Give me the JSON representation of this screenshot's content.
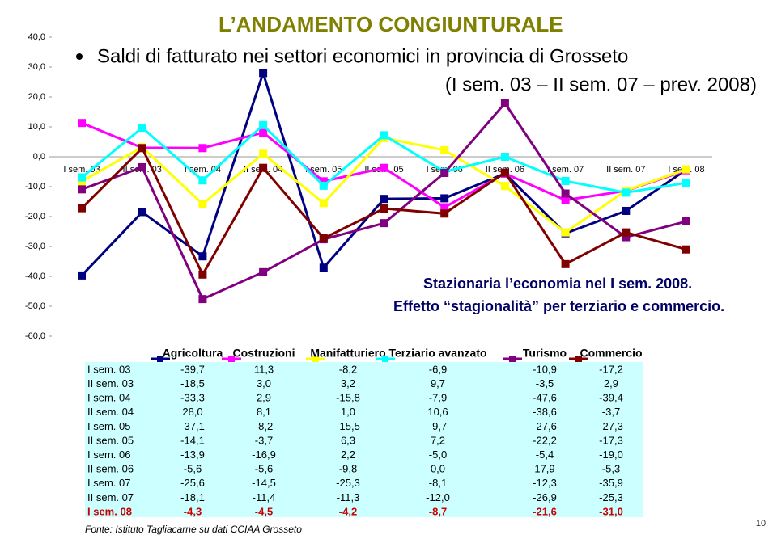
{
  "chart_data": {
    "type": "line",
    "title": "L’ANDAMENTO CONGIUNTURALE",
    "subtitle": "Saldi di fatturato nei settori economici in provincia di Grosseto",
    "period": "(I sem. 03 – II sem. 07 – prev. 2008)",
    "annotations": [
      "Stazionaria l’economia nel I sem. 2008.",
      "Effetto “stagionalità” per terziario e commercio."
    ],
    "source": "Fonte: Istituto Tagliacarne su dati CCIAA Grosseto",
    "categories": [
      "I sem. 03",
      "II sem. 03",
      "I sem. 04",
      "II sem. 04",
      "I sem. 05",
      "II sem. 05",
      "I sem. 06",
      "II sem. 06",
      "I sem. 07",
      "II sem. 07",
      "I sem. 08"
    ],
    "ylim": [
      -60,
      40
    ],
    "yticks": [
      {
        "value": 40,
        "label": "40,0"
      },
      {
        "value": 30,
        "label": "30,0"
      },
      {
        "value": 20,
        "label": "20,0"
      },
      {
        "value": 10,
        "label": "10,0"
      },
      {
        "value": 0,
        "label": "0,0"
      },
      {
        "value": -10,
        "label": "-10,0"
      },
      {
        "value": -20,
        "label": "-20,0"
      },
      {
        "value": -30,
        "label": "-30,0"
      },
      {
        "value": -40,
        "label": "-40,0"
      },
      {
        "value": -50,
        "label": "-50,0"
      },
      {
        "value": -60,
        "label": "-60,0"
      }
    ],
    "series": [
      {
        "name": "Agricoltura",
        "color": "#000080",
        "values": [
          -39.7,
          -18.5,
          -33.3,
          28.0,
          -37.1,
          -14.1,
          -13.9,
          -5.6,
          -25.6,
          -18.1,
          -4.3
        ],
        "value_labels": [
          "-39,7",
          "-18,5",
          "-33,3",
          "28,0",
          "-37,1",
          "-14,1",
          "-13,9",
          "-5,6",
          "-25,6",
          "-18,1",
          "-4,3"
        ]
      },
      {
        "name": "Costruzioni",
        "color": "#ff00ff",
        "values": [
          11.3,
          3.0,
          2.9,
          8.1,
          -8.2,
          -3.7,
          -16.9,
          -5.6,
          -14.5,
          -11.4,
          -4.5
        ],
        "value_labels": [
          "11,3",
          "3,0",
          "2,9",
          "8,1",
          "-8,2",
          "-3,7",
          "-16,9",
          "-5,6",
          "-14,5",
          "-11,4",
          "-4,5"
        ]
      },
      {
        "name": "Manifatturiero",
        "color": "#ffff00",
        "values": [
          -8.2,
          3.2,
          -15.8,
          1.0,
          -15.5,
          6.3,
          2.2,
          -9.8,
          -25.3,
          -11.3,
          -4.2
        ],
        "value_labels": [
          "-8,2",
          "3,2",
          "-15,8",
          "1,0",
          "-15,5",
          "6,3",
          "2,2",
          "-9,8",
          "-25,3",
          "-11,3",
          "-4,2"
        ]
      },
      {
        "name": "Terziario avanzato",
        "color": "#00ffff",
        "values": [
          -6.9,
          9.7,
          -7.9,
          10.6,
          -9.7,
          7.2,
          -5.0,
          0.0,
          -8.1,
          -12.0,
          -8.7
        ],
        "value_labels": [
          "-6,9",
          "9,7",
          "-7,9",
          "10,6",
          "-9,7",
          "7,2",
          "-5,0",
          "0,0",
          "-8,1",
          "-12,0",
          "-8,7"
        ]
      },
      {
        "name": "Turismo",
        "color": "#800080",
        "values": [
          -10.9,
          -3.5,
          -47.6,
          -38.6,
          -27.6,
          -22.2,
          -5.4,
          17.9,
          -12.3,
          -26.9,
          -21.6
        ],
        "value_labels": [
          "-10,9",
          "-3,5",
          "-47,6",
          "-38,6",
          "-27,6",
          "-22,2",
          "-5,4",
          "17,9",
          "-12,3",
          "-26,9",
          "-21,6"
        ]
      },
      {
        "name": "Commercio",
        "color": "#800000",
        "values": [
          -17.2,
          2.9,
          -39.4,
          -3.7,
          -27.3,
          -17.3,
          -19.0,
          -5.3,
          -35.9,
          -25.3,
          -31.0
        ],
        "value_labels": [
          "-17,2",
          "2,9",
          "-39,4",
          "-3,7",
          "-27,3",
          "-17,3",
          "-19,0",
          "-5,3",
          "-35,9",
          "-25,3",
          "-31,0"
        ]
      }
    ]
  },
  "page_number": "10"
}
